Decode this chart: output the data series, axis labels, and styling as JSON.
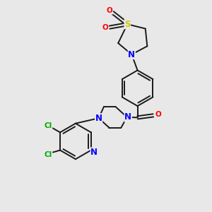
{
  "bg_color": "#e8e8e8",
  "bond_color": "#1a1a1a",
  "n_color": "#0000ff",
  "o_color": "#ff0000",
  "s_color": "#cccc00",
  "cl_color": "#00aa00",
  "lw": 1.4,
  "dbo": 0.025,
  "fs": 7.5,
  "xlim": [
    0,
    10
  ],
  "ylim": [
    0,
    10
  ]
}
